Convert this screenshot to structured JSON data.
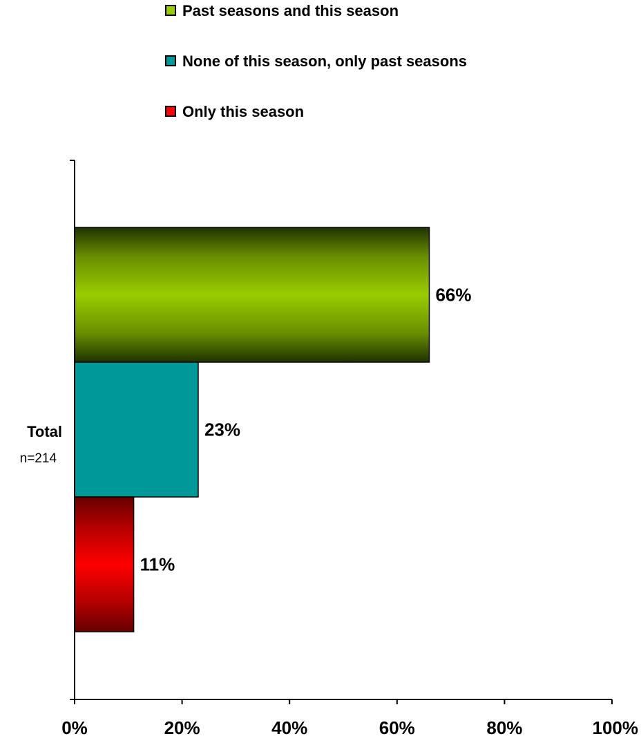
{
  "chart_data": {
    "type": "bar",
    "orientation": "horizontal",
    "categories": [
      "Total"
    ],
    "category_sublabels": [
      "n=214"
    ],
    "series": [
      {
        "name": "Past seasons and this season",
        "values": [
          66
        ],
        "data_label": "66%",
        "color": "#99cc00"
      },
      {
        "name": "None of this season, only past seasons",
        "values": [
          23
        ],
        "data_label": "23%",
        "color": "#009999"
      },
      {
        "name": "Only this season",
        "values": [
          11
        ],
        "data_label": "11%",
        "color": "#ff0000"
      }
    ],
    "xlim": [
      0,
      100
    ],
    "xticks": [
      0,
      20,
      40,
      60,
      80,
      100
    ],
    "xtick_labels": [
      "0%",
      "20%",
      "40%",
      "60%",
      "80%",
      "100%"
    ],
    "legend_position": "top",
    "grid": false,
    "title": "",
    "xlabel": "",
    "ylabel": ""
  }
}
